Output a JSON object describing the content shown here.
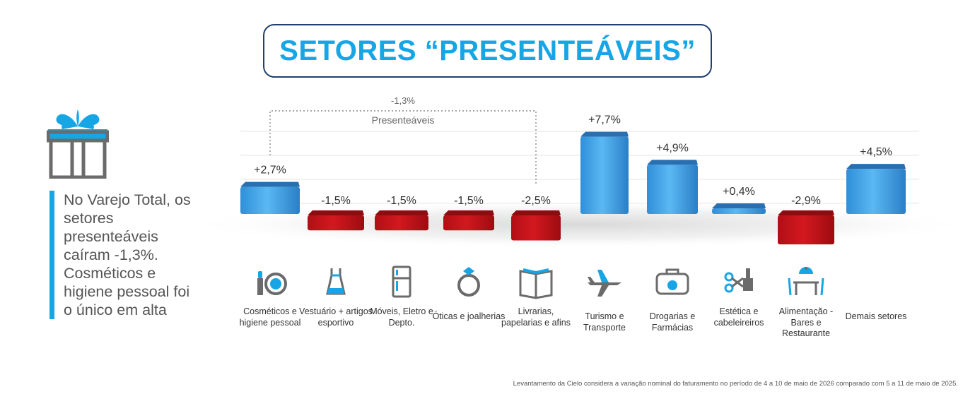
{
  "title": "SETORES “PRESENTEÁVEIS”",
  "side_text": "No Varejo Total, os setores presenteáveis caíram -1,3%. Cosméticos e higiene pessoal foi o único em alta",
  "footnote": "Levantamento da Cielo considera a variação nominal do faturamento no período de 4 a 10 de maio de 2026 comparado com 5 a 11 de maio de 2025.",
  "group": {
    "label": "Presenteáveis",
    "value_label": "-1,3%"
  },
  "colors": {
    "accent": "#16a6e6",
    "positive": "#3aa6ec",
    "negative": "#c8151b",
    "border": "#1f3f6e"
  },
  "categories": [
    {
      "label": "Cosméticos e higiene pessoal",
      "icon": "cosmetics-icon"
    },
    {
      "label": "Vestuário + artigos esportivo",
      "icon": "dress-icon"
    },
    {
      "label": "Móveis, Eletro e Depto.",
      "icon": "fridge-icon"
    },
    {
      "label": "Óticas e joalherias",
      "icon": "ring-icon"
    },
    {
      "label": "Livrarias, papelarias e afins",
      "icon": "book-icon"
    },
    {
      "label": "Turismo e Transporte",
      "icon": "airplane-icon"
    },
    {
      "label": "Drogarias e Farmácias",
      "icon": "medical-bag-icon"
    },
    {
      "label": "Estética e cabeleireiros",
      "icon": "scissors-brush-icon"
    },
    {
      "label": "Alimentação - Bares e Restaurante",
      "icon": "restaurant-table-icon"
    },
    {
      "label": "Demais setores",
      "icon": ""
    }
  ],
  "chart_data": {
    "type": "bar",
    "categories": [
      "Cosméticos e higiene pessoal",
      "Vestuário + artigos esportivo",
      "Móveis, Eletro e Depto.",
      "Óticas e joalherias",
      "Livrarias, papelarias e afins",
      "Turismo e Transporte",
      "Drogarias e Farmácias",
      "Estética e cabeleireiros",
      "Alimentação - Bares e Restaurante",
      "Demais setores"
    ],
    "values": [
      2.7,
      -1.5,
      -1.5,
      -1.5,
      -2.5,
      7.7,
      4.9,
      0.4,
      -2.9,
      4.5
    ],
    "labels": [
      "+2,7%",
      "-1,5%",
      "-1,5%",
      "-1,5%",
      "-2,5%",
      "+7,7%",
      "+4,9%",
      "+0,4%",
      "-2,9%",
      "+4,5%"
    ],
    "grid": true,
    "legend": "none"
  }
}
